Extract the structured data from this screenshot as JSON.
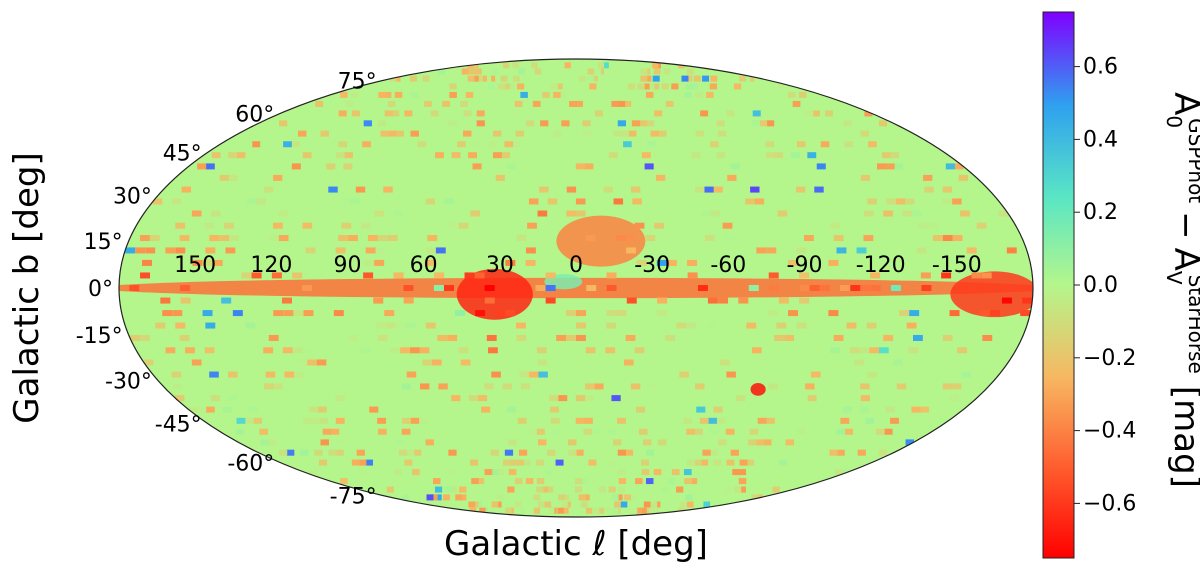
{
  "chart_data": {
    "type": "heatmap",
    "projection": "mollweide",
    "xlabel": "Galactic ℓ [deg]",
    "ylabel": "Galactic b [deg]",
    "colorbar_label": {
      "base1": "A",
      "sub1": "0",
      "sup1": "GSPPhot",
      "minus": "−",
      "base2": "A",
      "sub2": "V",
      "sup2": "StarHorse",
      "unit": "[mag]"
    },
    "colormap": "rainbow",
    "vmin": -0.75,
    "vmax": 0.75,
    "colorbar_ticks": [
      {
        "value": 0.6,
        "label": "0.6"
      },
      {
        "value": 0.4,
        "label": "0.4"
      },
      {
        "value": 0.2,
        "label": "0.2"
      },
      {
        "value": 0.0,
        "label": "0.0"
      },
      {
        "value": -0.2,
        "label": "−0.2"
      },
      {
        "value": -0.4,
        "label": "−0.4"
      },
      {
        "value": -0.6,
        "label": "−0.6"
      }
    ],
    "longitude_ticks": [
      {
        "value": 150,
        "label": "150"
      },
      {
        "value": 120,
        "label": "120"
      },
      {
        "value": 90,
        "label": "90"
      },
      {
        "value": 60,
        "label": "60"
      },
      {
        "value": 30,
        "label": "30"
      },
      {
        "value": 0,
        "label": "0"
      },
      {
        "value": -30,
        "label": "-30"
      },
      {
        "value": -60,
        "label": "-60"
      },
      {
        "value": -90,
        "label": "-90"
      },
      {
        "value": -120,
        "label": "-120"
      },
      {
        "value": -150,
        "label": "-150"
      }
    ],
    "latitude_ticks": [
      {
        "value": 75,
        "label": "75°"
      },
      {
        "value": 60,
        "label": "60°"
      },
      {
        "value": 45,
        "label": "45°"
      },
      {
        "value": 30,
        "label": "30°"
      },
      {
        "value": 15,
        "label": "15°"
      },
      {
        "value": 0,
        "label": "0°"
      },
      {
        "value": -15,
        "label": "-15°"
      },
      {
        "value": -30,
        "label": "-30°"
      },
      {
        "value": -45,
        "label": "-45°"
      },
      {
        "value": -60,
        "label": "-60°"
      },
      {
        "value": -75,
        "label": "-75°"
      }
    ],
    "background_level": -0.15,
    "features": [
      {
        "name": "disk band",
        "l": 0,
        "b": 0,
        "l_extent": 360,
        "b_width": 8,
        "level": -0.45
      },
      {
        "name": "inner galaxy region (l~30)",
        "l": 32,
        "b": -2,
        "l_extent": 30,
        "b_width": 20,
        "level": -0.65
      },
      {
        "name": "region above plane (l 0 to -30)",
        "l": -10,
        "b": 15,
        "l_extent": 35,
        "b_width": 20,
        "level": -0.4
      },
      {
        "name": "anticentre region (l~-160)",
        "l": -165,
        "b": -2,
        "l_extent": 35,
        "b_width": 18,
        "level": -0.6
      },
      {
        "name": "LMC patch",
        "l": -80,
        "b": -33,
        "l_extent": 6,
        "b_width": 5,
        "level": -0.7
      },
      {
        "name": "plane near l=0",
        "l": 5,
        "b": 2,
        "l_extent": 15,
        "b_width": 6,
        "level": 0.15
      }
    ]
  }
}
